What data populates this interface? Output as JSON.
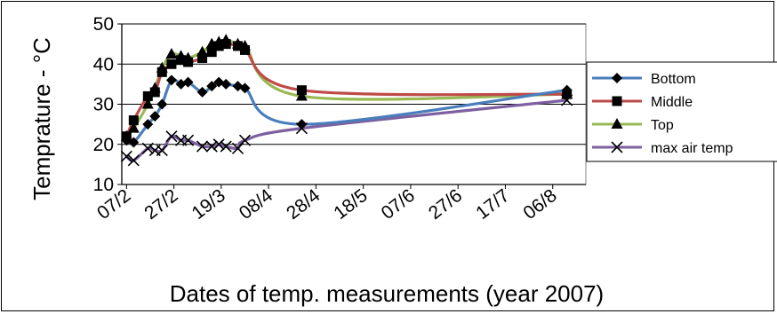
{
  "chart_data": {
    "type": "line",
    "title": "",
    "xlabel": "Dates of temp. measurements (year 2007)",
    "ylabel": "Temprature - °C",
    "ylim": [
      10,
      50
    ],
    "yticks": [
      10,
      20,
      30,
      40,
      50
    ],
    "xlim": [
      "2007-02-05",
      "2007-08-20"
    ],
    "xticks": [
      "2007-02-07",
      "2007-02-27",
      "2007-03-19",
      "2007-04-08",
      "2007-04-28",
      "2007-05-18",
      "2007-06-07",
      "2007-06-27",
      "2007-07-17",
      "2007-08-06"
    ],
    "xtick_labels": [
      "07/2",
      "27/2",
      "19/3",
      "08/4",
      "28/4",
      "18/5",
      "07/6",
      "27/6",
      "17/7",
      "06/8"
    ],
    "grid": "horizontal",
    "legend_position": "right",
    "series": [
      {
        "name": "Bottom",
        "color": "#4a7ebb",
        "marker": "diamond",
        "points": [
          {
            "x": "2007-02-07",
            "y": 21
          },
          {
            "x": "2007-02-10",
            "y": 20.5
          },
          {
            "x": "2007-02-16",
            "y": 25
          },
          {
            "x": "2007-02-19",
            "y": 27
          },
          {
            "x": "2007-02-22",
            "y": 30
          },
          {
            "x": "2007-02-26",
            "y": 36
          },
          {
            "x": "2007-03-02",
            "y": 35
          },
          {
            "x": "2007-03-05",
            "y": 35.5
          },
          {
            "x": "2007-03-11",
            "y": 33
          },
          {
            "x": "2007-03-15",
            "y": 34.5
          },
          {
            "x": "2007-03-18",
            "y": 35.5
          },
          {
            "x": "2007-03-21",
            "y": 35
          },
          {
            "x": "2007-03-26",
            "y": 34.5
          },
          {
            "x": "2007-03-29",
            "y": 34
          },
          {
            "x": "2007-04-22",
            "y": 25
          },
          {
            "x": "2007-08-12",
            "y": 33.5
          }
        ]
      },
      {
        "name": "Middle",
        "color": "#be4b48",
        "marker": "square",
        "points": [
          {
            "x": "2007-02-07",
            "y": 22
          },
          {
            "x": "2007-02-10",
            "y": 26
          },
          {
            "x": "2007-02-16",
            "y": 32
          },
          {
            "x": "2007-02-19",
            "y": 33
          },
          {
            "x": "2007-02-22",
            "y": 38
          },
          {
            "x": "2007-02-26",
            "y": 40
          },
          {
            "x": "2007-03-02",
            "y": 41
          },
          {
            "x": "2007-03-05",
            "y": 40.5
          },
          {
            "x": "2007-03-11",
            "y": 41.5
          },
          {
            "x": "2007-03-15",
            "y": 43
          },
          {
            "x": "2007-03-18",
            "y": 44.5
          },
          {
            "x": "2007-03-21",
            "y": 45
          },
          {
            "x": "2007-03-26",
            "y": 44.5
          },
          {
            "x": "2007-03-29",
            "y": 43.5
          },
          {
            "x": "2007-04-22",
            "y": 33.5
          },
          {
            "x": "2007-08-12",
            "y": 32.5
          }
        ]
      },
      {
        "name": "Top",
        "color": "#98b954",
        "marker": "triangle",
        "points": [
          {
            "x": "2007-02-07",
            "y": 22
          },
          {
            "x": "2007-02-10",
            "y": 24
          },
          {
            "x": "2007-02-16",
            "y": 30
          },
          {
            "x": "2007-02-19",
            "y": 34
          },
          {
            "x": "2007-02-22",
            "y": 39
          },
          {
            "x": "2007-02-26",
            "y": 42.5
          },
          {
            "x": "2007-03-02",
            "y": 42
          },
          {
            "x": "2007-03-05",
            "y": 41.5
          },
          {
            "x": "2007-03-11",
            "y": 43
          },
          {
            "x": "2007-03-15",
            "y": 45
          },
          {
            "x": "2007-03-18",
            "y": 45.5
          },
          {
            "x": "2007-03-21",
            "y": 46
          },
          {
            "x": "2007-03-26",
            "y": 45
          },
          {
            "x": "2007-03-29",
            "y": 44.5
          },
          {
            "x": "2007-04-22",
            "y": 32
          },
          {
            "x": "2007-08-12",
            "y": 32.5
          }
        ]
      },
      {
        "name": "max air temp",
        "color": "#7d60a0",
        "marker": "x",
        "points": [
          {
            "x": "2007-02-07",
            "y": 17
          },
          {
            "x": "2007-02-10",
            "y": 16
          },
          {
            "x": "2007-02-16",
            "y": 19
          },
          {
            "x": "2007-02-19",
            "y": 18.5
          },
          {
            "x": "2007-02-22",
            "y": 18.5
          },
          {
            "x": "2007-02-26",
            "y": 22
          },
          {
            "x": "2007-03-02",
            "y": 21
          },
          {
            "x": "2007-03-05",
            "y": 21
          },
          {
            "x": "2007-03-11",
            "y": 19.5
          },
          {
            "x": "2007-03-15",
            "y": 19.5
          },
          {
            "x": "2007-03-18",
            "y": 20
          },
          {
            "x": "2007-03-21",
            "y": 19.5
          },
          {
            "x": "2007-03-26",
            "y": 19
          },
          {
            "x": "2007-03-29",
            "y": 21
          },
          {
            "x": "2007-04-22",
            "y": 24
          },
          {
            "x": "2007-08-12",
            "y": 31
          }
        ]
      }
    ]
  }
}
